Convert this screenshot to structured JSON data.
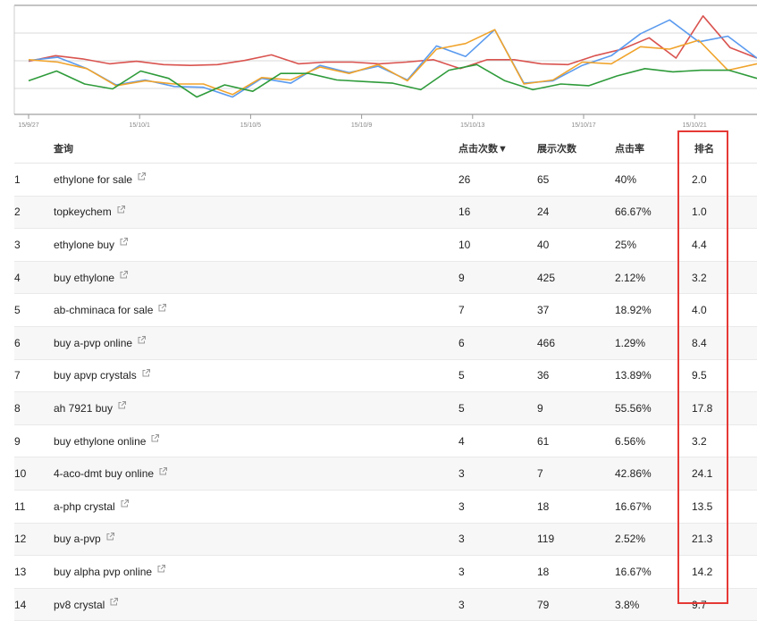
{
  "chart": {
    "x_ticks": [
      "15/9/27",
      "15/10/1",
      "15/10/5",
      "15/10/9",
      "15/10/13",
      "15/10/17",
      "15/10/21"
    ],
    "colors": {
      "red": "#d9534f",
      "blue": "#5b9bef",
      "orange": "#f0a32b",
      "green": "#2e9b3a",
      "grid": "#d8d8d8",
      "axis": "#888888"
    },
    "series": [
      {
        "color": "red",
        "values": [
          69,
          62,
          66,
          72,
          69,
          73,
          74,
          73,
          68,
          61,
          72,
          70,
          70,
          72,
          70,
          67,
          78,
          67,
          67,
          72,
          73,
          62,
          54,
          40,
          65,
          13,
          52,
          65
        ]
      },
      {
        "color": "blue",
        "values": [
          68,
          64,
          78,
          98,
          92,
          100,
          101,
          113,
          90,
          96,
          74,
          83,
          75,
          92,
          50,
          63,
          30,
          96,
          93,
          74,
          62,
          35,
          18,
          45,
          38,
          65
        ]
      },
      {
        "color": "orange",
        "values": [
          67,
          70,
          78,
          99,
          93,
          97,
          97,
          110,
          89,
          92,
          76,
          84,
          73,
          93,
          54,
          47,
          30,
          97,
          92,
          70,
          72,
          51,
          54,
          43,
          80,
          72
        ]
      },
      {
        "color": "green",
        "values": [
          93,
          81,
          97,
          103,
          81,
          90,
          113,
          98,
          106,
          84,
          84,
          92,
          94,
          96,
          104,
          80,
          73,
          93,
          104,
          97,
          99,
          87,
          78,
          82,
          80,
          80,
          90
        ]
      }
    ],
    "ylim": [
      0,
      130
    ]
  },
  "table": {
    "headers": {
      "query": "查询",
      "clicks": "点击次数▼",
      "impressions": "展示次数",
      "ctr": "点击率",
      "rank": "排名"
    },
    "rows": [
      {
        "idx": "1",
        "query": "ethylone for sale",
        "clicks": "26",
        "impr": "65",
        "ctr": "40%",
        "rank": "2.0"
      },
      {
        "idx": "2",
        "query": "topkeychem",
        "clicks": "16",
        "impr": "24",
        "ctr": "66.67%",
        "rank": "1.0"
      },
      {
        "idx": "3",
        "query": "ethylone buy",
        "clicks": "10",
        "impr": "40",
        "ctr": "25%",
        "rank": "4.4"
      },
      {
        "idx": "4",
        "query": "buy ethylone",
        "clicks": "9",
        "impr": "425",
        "ctr": "2.12%",
        "rank": "3.2"
      },
      {
        "idx": "5",
        "query": "ab-chminaca for sale",
        "clicks": "7",
        "impr": "37",
        "ctr": "18.92%",
        "rank": "4.0"
      },
      {
        "idx": "6",
        "query": "buy a-pvp online",
        "clicks": "6",
        "impr": "466",
        "ctr": "1.29%",
        "rank": "8.4"
      },
      {
        "idx": "7",
        "query": "buy apvp crystals",
        "clicks": "5",
        "impr": "36",
        "ctr": "13.89%",
        "rank": "9.5"
      },
      {
        "idx": "8",
        "query": "ah 7921 buy",
        "clicks": "5",
        "impr": "9",
        "ctr": "55.56%",
        "rank": "17.8"
      },
      {
        "idx": "9",
        "query": "buy ethylone online",
        "clicks": "4",
        "impr": "61",
        "ctr": "6.56%",
        "rank": "3.2"
      },
      {
        "idx": "10",
        "query": "4-aco-dmt buy online",
        "clicks": "3",
        "impr": "7",
        "ctr": "42.86%",
        "rank": "24.1"
      },
      {
        "idx": "11",
        "query": "a-php crystal",
        "clicks": "3",
        "impr": "18",
        "ctr": "16.67%",
        "rank": "13.5"
      },
      {
        "idx": "12",
        "query": "buy a-pvp",
        "clicks": "3",
        "impr": "119",
        "ctr": "2.52%",
        "rank": "21.3"
      },
      {
        "idx": "13",
        "query": "buy alpha pvp online",
        "clicks": "3",
        "impr": "18",
        "ctr": "16.67%",
        "rank": "14.2"
      },
      {
        "idx": "14",
        "query": "pv8 crystal",
        "clicks": "3",
        "impr": "79",
        "ctr": "3.8%",
        "rank": "9.7"
      }
    ],
    "external_link_icon": "external-link-icon"
  }
}
